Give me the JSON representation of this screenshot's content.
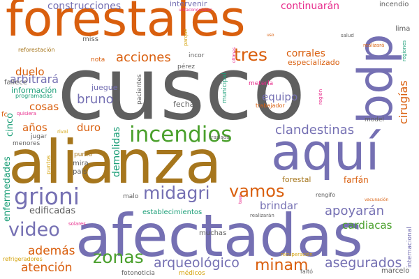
{
  "palette": {
    "orange": "#d95f0e",
    "gray": "#5f5f5f",
    "purple": "#7570b3",
    "green": "#4aa02c",
    "teal": "#1b9e77",
    "gold": "#a6761d",
    "pink": "#e7298a",
    "lime": "#8fb800",
    "ochre": "#d4a20a"
  },
  "words": [
    "forestales",
    "cusco",
    "bdp",
    "alianza",
    "aquí",
    "afectadas",
    "incendios",
    "grioni",
    "midagri",
    "video",
    "vamos",
    "tres",
    "acciones",
    "minam",
    "zonas",
    "arqueológico",
    "asegurados",
    "clandestinas",
    "apoyarán",
    "construcciones",
    "continuarán",
    "corrales",
    "cirugías",
    "brindar",
    "cardiacas",
    "bruno",
    "arbitrará",
    "duelo",
    "equipo",
    "años",
    "duro",
    "además",
    "atención",
    "cosas",
    "edificadas",
    "demolidas",
    "enfermedades",
    "cinco",
    "especializado",
    "forestal",
    "farfán",
    "internacional",
    "marcelo",
    "intervenir",
    "incendio",
    "lima",
    "fallece",
    "información",
    "fc",
    "quisiera",
    "jugar",
    "menores",
    "miss",
    "nota",
    "incor",
    "pérez",
    "pacientes",
    "parque",
    "juegue",
    "fechas",
    "municipal",
    "meterla",
    "trabajador",
    "región",
    "model",
    "realizará",
    "salud",
    "regiones",
    "uso",
    "últimas",
    "ultracongelador",
    "reforestación",
    "programadas",
    "rival",
    "punto",
    "mira",
    "país",
    "puntos",
    "malo",
    "establecimientos",
    "muchas",
    "traslada",
    "teen",
    "rengifo",
    "vacunación",
    "solares",
    "realizarán",
    "recuperación",
    "refrigeradores",
    "fotonoticia",
    "médicos",
    "faltó"
  ]
}
